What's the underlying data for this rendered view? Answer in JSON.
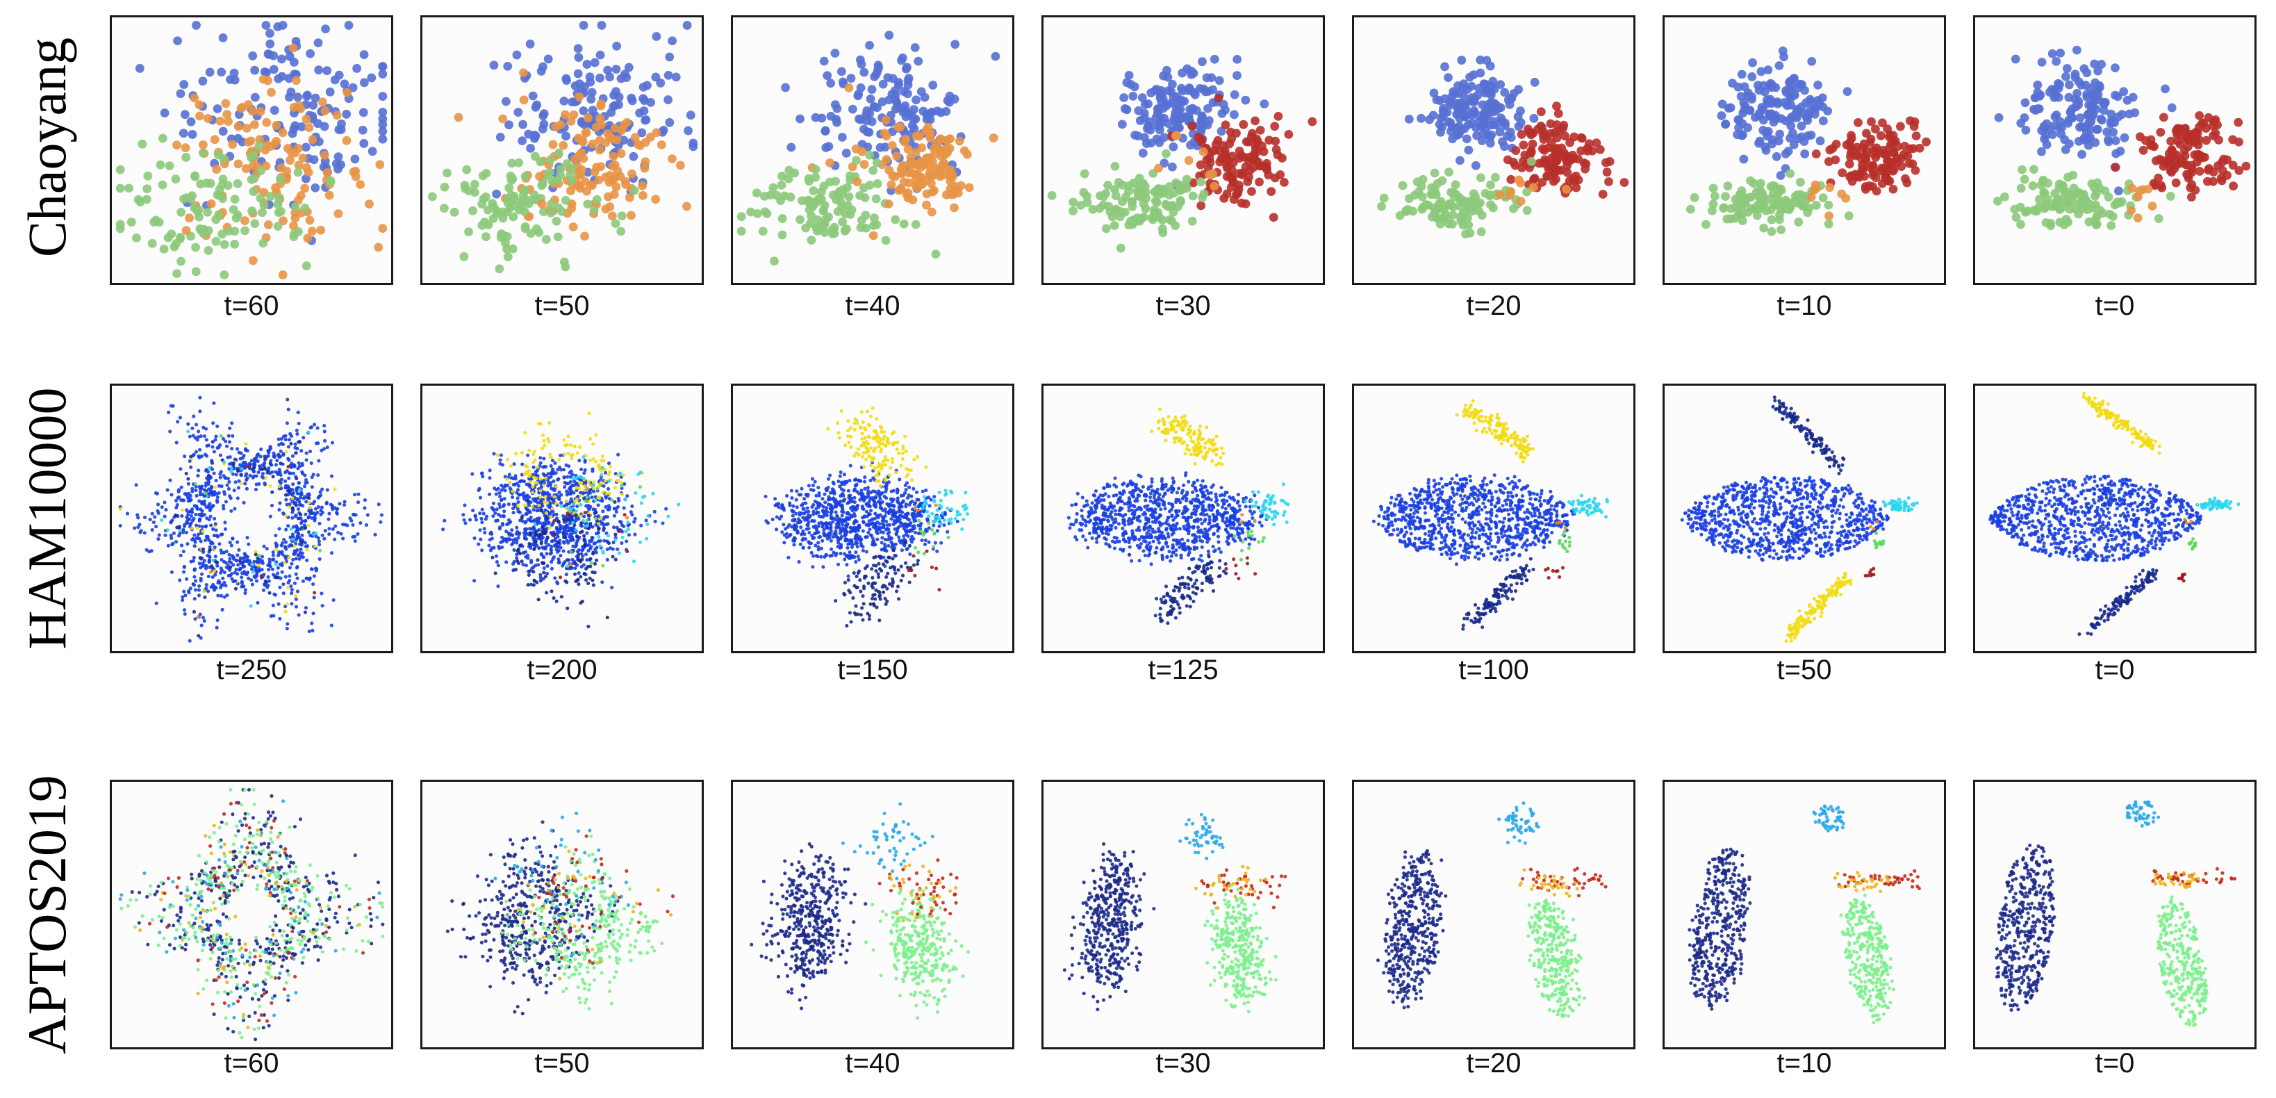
{
  "chart_data": {
    "type": "scatter",
    "description_kind": "t-SNE embeddings at diffusion timesteps",
    "rows": [
      {
        "dataset": "Chaoyang",
        "panels": [
          {
            "t_label": "t=60",
            "timestep": 60,
            "stage": 0.0
          },
          {
            "t_label": "t=50",
            "timestep": 50,
            "stage": 0.17
          },
          {
            "t_label": "t=40",
            "timestep": 40,
            "stage": 0.35
          },
          {
            "t_label": "t=30",
            "timestep": 30,
            "stage": 0.6
          },
          {
            "t_label": "t=20",
            "timestep": 20,
            "stage": 0.78
          },
          {
            "t_label": "t=10",
            "timestep": 10,
            "stage": 0.9
          },
          {
            "t_label": "t=0",
            "timestep": 0,
            "stage": 1.0
          }
        ],
        "class_colors": [
          "#5670d4",
          "#e89446",
          "#8cc97a",
          "#b8302a"
        ]
      },
      {
        "dataset": "HAM10000",
        "panels": [
          {
            "t_label": "t=250",
            "timestep": 250,
            "stage": 0.0
          },
          {
            "t_label": "t=200",
            "timestep": 200,
            "stage": 0.45
          },
          {
            "t_label": "t=150",
            "timestep": 150,
            "stage": 0.75
          },
          {
            "t_label": "t=125",
            "timestep": 125,
            "stage": 0.85
          },
          {
            "t_label": "t=100",
            "timestep": 100,
            "stage": 0.92
          },
          {
            "t_label": "t=50",
            "timestep": 50,
            "stage": 0.97
          },
          {
            "t_label": "t=0",
            "timestep": 0,
            "stage": 1.0
          }
        ],
        "class_colors": [
          "#1a3fe0",
          "#f2dc12",
          "#162a8c",
          "#2ad6f0",
          "#5ad85a",
          "#a01818",
          "#f08a1a"
        ]
      },
      {
        "dataset": "APTOS2019",
        "panels": [
          {
            "t_label": "t=60",
            "timestep": 60,
            "stage": 0.0
          },
          {
            "t_label": "t=50",
            "timestep": 50,
            "stage": 0.35
          },
          {
            "t_label": "t=40",
            "timestep": 40,
            "stage": 0.7
          },
          {
            "t_label": "t=30",
            "timestep": 30,
            "stage": 0.82
          },
          {
            "t_label": "t=20",
            "timestep": 20,
            "stage": 0.9
          },
          {
            "t_label": "t=10",
            "timestep": 10,
            "stage": 0.95
          },
          {
            "t_label": "t=0",
            "timestep": 0,
            "stage": 1.0
          }
        ],
        "class_colors": [
          "#1c2a8a",
          "#7cf08c",
          "#2aa8e8",
          "#c42a18",
          "#f0b41a"
        ]
      }
    ]
  }
}
